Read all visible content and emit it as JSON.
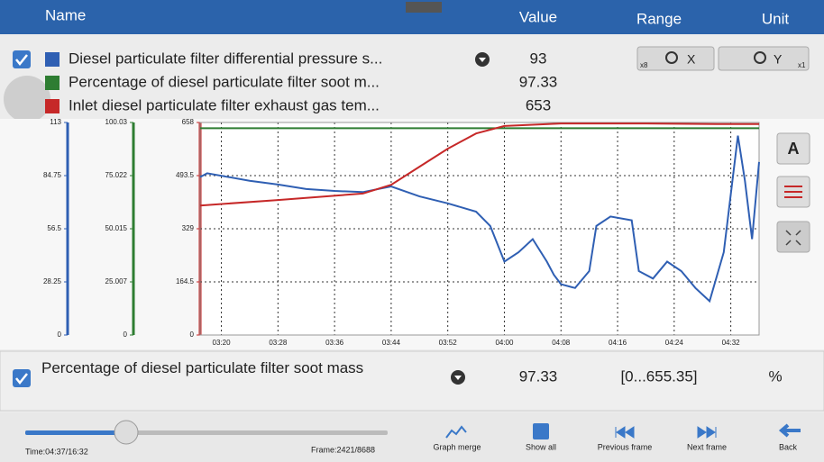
{
  "header": {
    "name": "Name",
    "value": "Value",
    "range": "Range",
    "unit": "Unit"
  },
  "zoom": {
    "x_factor": "x8",
    "x": "X",
    "y": "Y",
    "y_factor": "x1"
  },
  "side_buttons": {
    "font": "A"
  },
  "chart_data": {
    "type": "line",
    "xlim": [
      "03:17",
      "04:36"
    ],
    "xticks": [
      "03:20",
      "03:28",
      "03:36",
      "03:44",
      "03:52",
      "04:00",
      "04:08",
      "04:16",
      "04:24",
      "04:32"
    ],
    "grid": true,
    "y_axes": [
      {
        "color": "#2f5fb3",
        "ylim": [
          0,
          113
        ],
        "yticks": [
          0,
          28.25,
          56.5,
          84.75,
          113
        ]
      },
      {
        "color": "#2e7d32",
        "ylim": [
          0,
          100.03
        ],
        "yticks": [
          0,
          25.007,
          50.015,
          75.022,
          100.03
        ]
      },
      {
        "color": "#c62828",
        "ylim": [
          0,
          658
        ],
        "yticks": [
          0,
          164.5,
          329,
          493.5,
          658
        ]
      }
    ],
    "series": [
      {
        "name": "Diesel particulate filter differential pressure s...",
        "color": "#2f5fb3",
        "axis": 0,
        "current": 93,
        "x": [
          "03:17",
          "03:18",
          "03:24",
          "03:28",
          "03:32",
          "03:36",
          "03:40",
          "03:44",
          "03:48",
          "03:52",
          "03:56",
          "03:58",
          "04:00",
          "04:02",
          "04:04",
          "04:06",
          "04:07",
          "04:08",
          "04:10",
          "04:12",
          "04:13",
          "04:15",
          "04:18",
          "04:19",
          "04:21",
          "04:23",
          "04:25",
          "04:27",
          "04:29",
          "04:31",
          "04:33",
          "04:34",
          "04:35",
          "04:36"
        ],
        "values": [
          84,
          86,
          82,
          80,
          77.6,
          76.6,
          76,
          79,
          73.7,
          70,
          65.6,
          58,
          39,
          44,
          51,
          39,
          32,
          27,
          25,
          34,
          58,
          63,
          61,
          34,
          30,
          39,
          34,
          25,
          18,
          44,
          106,
          82,
          51,
          92
        ]
      },
      {
        "name": "Percentage of diesel particulate filter soot m...",
        "color": "#2e7d32",
        "axis": 1,
        "current": 97.33,
        "x": [
          "03:17",
          "04:36"
        ],
        "values": [
          97.33,
          97.33
        ]
      },
      {
        "name": "Inlet diesel particulate filter exhaust gas tem...",
        "color": "#c62828",
        "axis": 2,
        "current": 653,
        "x": [
          "03:17",
          "03:28",
          "03:40",
          "03:44",
          "03:48",
          "03:52",
          "03:56",
          "04:00",
          "04:08",
          "04:20",
          "04:30",
          "04:36"
        ],
        "values": [
          401,
          418,
          438,
          465,
          521,
          577,
          624,
          647,
          655,
          655,
          653,
          653
        ]
      }
    ]
  },
  "selected": {
    "name": "Percentage of diesel particulate filter soot mass",
    "value": 97.33,
    "range": "[0...655.35]",
    "unit": "%"
  },
  "footer": {
    "time": "Time:04:37/16:32",
    "frame": "Frame:2421/8688",
    "buttons": [
      "Graph merge",
      "Show all",
      "Previous frame",
      "Next frame",
      "Back"
    ]
  }
}
